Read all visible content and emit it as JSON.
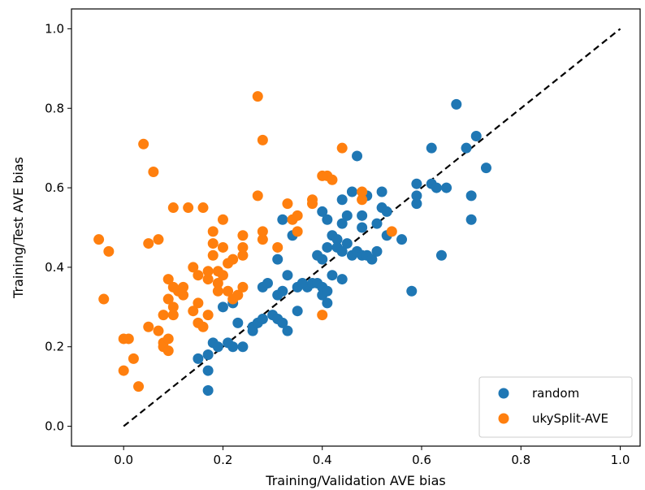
{
  "chart_data": {
    "type": "scatter",
    "xlabel": "Training/Validation AVE bias",
    "ylabel": "Training/Test AVE bias",
    "xlim": [
      -0.105,
      1.04
    ],
    "ylim": [
      -0.05,
      1.05
    ],
    "xticks": [
      "0.0",
      "0.2",
      "0.4",
      "0.6",
      "0.8",
      "1.0"
    ],
    "yticks": [
      "0.0",
      "0.2",
      "0.4",
      "0.6",
      "0.8",
      "1.0"
    ],
    "reference_line": {
      "style": "dashed",
      "color": "#000000",
      "from": [
        0,
        0
      ],
      "to": [
        1,
        1
      ]
    },
    "grid": false,
    "legend_position": "bottom-right",
    "series": [
      {
        "name": "random",
        "color": "#1f77b4",
        "points": [
          [
            0.17,
            0.09
          ],
          [
            0.17,
            0.14
          ],
          [
            0.15,
            0.17
          ],
          [
            0.17,
            0.18
          ],
          [
            0.18,
            0.21
          ],
          [
            0.19,
            0.2
          ],
          [
            0.21,
            0.21
          ],
          [
            0.22,
            0.2
          ],
          [
            0.24,
            0.2
          ],
          [
            0.2,
            0.3
          ],
          [
            0.22,
            0.31
          ],
          [
            0.23,
            0.26
          ],
          [
            0.26,
            0.24
          ],
          [
            0.26,
            0.25
          ],
          [
            0.27,
            0.26
          ],
          [
            0.28,
            0.27
          ],
          [
            0.3,
            0.28
          ],
          [
            0.31,
            0.27
          ],
          [
            0.32,
            0.26
          ],
          [
            0.33,
            0.24
          ],
          [
            0.35,
            0.29
          ],
          [
            0.28,
            0.35
          ],
          [
            0.29,
            0.36
          ],
          [
            0.31,
            0.33
          ],
          [
            0.32,
            0.34
          ],
          [
            0.33,
            0.38
          ],
          [
            0.35,
            0.35
          ],
          [
            0.37,
            0.35
          ],
          [
            0.38,
            0.36
          ],
          [
            0.39,
            0.36
          ],
          [
            0.4,
            0.35
          ],
          [
            0.4,
            0.33
          ],
          [
            0.41,
            0.31
          ],
          [
            0.41,
            0.34
          ],
          [
            0.31,
            0.42
          ],
          [
            0.32,
            0.52
          ],
          [
            0.34,
            0.48
          ],
          [
            0.36,
            0.36
          ],
          [
            0.39,
            0.43
          ],
          [
            0.4,
            0.42
          ],
          [
            0.41,
            0.45
          ],
          [
            0.42,
            0.48
          ],
          [
            0.43,
            0.47
          ],
          [
            0.43,
            0.45
          ],
          [
            0.44,
            0.44
          ],
          [
            0.45,
            0.46
          ],
          [
            0.46,
            0.43
          ],
          [
            0.42,
            0.38
          ],
          [
            0.44,
            0.37
          ],
          [
            0.47,
            0.44
          ],
          [
            0.48,
            0.43
          ],
          [
            0.49,
            0.43
          ],
          [
            0.5,
            0.42
          ],
          [
            0.51,
            0.44
          ],
          [
            0.53,
            0.48
          ],
          [
            0.52,
            0.55
          ],
          [
            0.51,
            0.51
          ],
          [
            0.48,
            0.5
          ],
          [
            0.48,
            0.53
          ],
          [
            0.45,
            0.53
          ],
          [
            0.44,
            0.57
          ],
          [
            0.46,
            0.59
          ],
          [
            0.4,
            0.54
          ],
          [
            0.41,
            0.52
          ],
          [
            0.44,
            0.51
          ],
          [
            0.47,
            0.68
          ],
          [
            0.49,
            0.58
          ],
          [
            0.52,
            0.59
          ],
          [
            0.53,
            0.54
          ],
          [
            0.56,
            0.47
          ],
          [
            0.58,
            0.34
          ],
          [
            0.59,
            0.56
          ],
          [
            0.59,
            0.58
          ],
          [
            0.59,
            0.61
          ],
          [
            0.62,
            0.61
          ],
          [
            0.62,
            0.7
          ],
          [
            0.63,
            0.6
          ],
          [
            0.64,
            0.43
          ],
          [
            0.65,
            0.6
          ],
          [
            0.67,
            0.81
          ],
          [
            0.69,
            0.7
          ],
          [
            0.7,
            0.52
          ],
          [
            0.7,
            0.58
          ],
          [
            0.71,
            0.73
          ],
          [
            0.73,
            0.65
          ]
        ]
      },
      {
        "name": "ukySplit-AVE",
        "color": "#ff7f0e",
        "points": [
          [
            -0.05,
            0.47
          ],
          [
            -0.03,
            0.44
          ],
          [
            -0.04,
            0.32
          ],
          [
            0.0,
            0.22
          ],
          [
            0.0,
            0.14
          ],
          [
            0.01,
            0.22
          ],
          [
            0.02,
            0.17
          ],
          [
            0.03,
            0.1
          ],
          [
            0.04,
            0.71
          ],
          [
            0.05,
            0.46
          ],
          [
            0.05,
            0.25
          ],
          [
            0.06,
            0.64
          ],
          [
            0.07,
            0.47
          ],
          [
            0.07,
            0.24
          ],
          [
            0.08,
            0.21
          ],
          [
            0.08,
            0.2
          ],
          [
            0.09,
            0.19
          ],
          [
            0.09,
            0.22
          ],
          [
            0.08,
            0.28
          ],
          [
            0.09,
            0.32
          ],
          [
            0.09,
            0.37
          ],
          [
            0.1,
            0.3
          ],
          [
            0.1,
            0.28
          ],
          [
            0.1,
            0.35
          ],
          [
            0.1,
            0.55
          ],
          [
            0.11,
            0.34
          ],
          [
            0.12,
            0.33
          ],
          [
            0.12,
            0.35
          ],
          [
            0.13,
            0.55
          ],
          [
            0.14,
            0.29
          ],
          [
            0.14,
            0.4
          ],
          [
            0.15,
            0.26
          ],
          [
            0.15,
            0.31
          ],
          [
            0.15,
            0.38
          ],
          [
            0.16,
            0.55
          ],
          [
            0.16,
            0.25
          ],
          [
            0.17,
            0.28
          ],
          [
            0.17,
            0.37
          ],
          [
            0.17,
            0.39
          ],
          [
            0.18,
            0.43
          ],
          [
            0.18,
            0.46
          ],
          [
            0.18,
            0.49
          ],
          [
            0.19,
            0.36
          ],
          [
            0.19,
            0.34
          ],
          [
            0.19,
            0.39
          ],
          [
            0.2,
            0.38
          ],
          [
            0.2,
            0.45
          ],
          [
            0.2,
            0.52
          ],
          [
            0.21,
            0.41
          ],
          [
            0.21,
            0.34
          ],
          [
            0.22,
            0.42
          ],
          [
            0.22,
            0.32
          ],
          [
            0.23,
            0.33
          ],
          [
            0.24,
            0.35
          ],
          [
            0.24,
            0.43
          ],
          [
            0.24,
            0.45
          ],
          [
            0.24,
            0.48
          ],
          [
            0.27,
            0.58
          ],
          [
            0.27,
            0.83
          ],
          [
            0.28,
            0.72
          ],
          [
            0.28,
            0.47
          ],
          [
            0.28,
            0.49
          ],
          [
            0.31,
            0.45
          ],
          [
            0.33,
            0.56
          ],
          [
            0.34,
            0.52
          ],
          [
            0.35,
            0.53
          ],
          [
            0.35,
            0.49
          ],
          [
            0.38,
            0.57
          ],
          [
            0.38,
            0.56
          ],
          [
            0.4,
            0.28
          ],
          [
            0.4,
            0.63
          ],
          [
            0.41,
            0.63
          ],
          [
            0.42,
            0.62
          ],
          [
            0.44,
            0.7
          ],
          [
            0.48,
            0.57
          ],
          [
            0.48,
            0.59
          ],
          [
            0.54,
            0.49
          ]
        ]
      }
    ]
  }
}
